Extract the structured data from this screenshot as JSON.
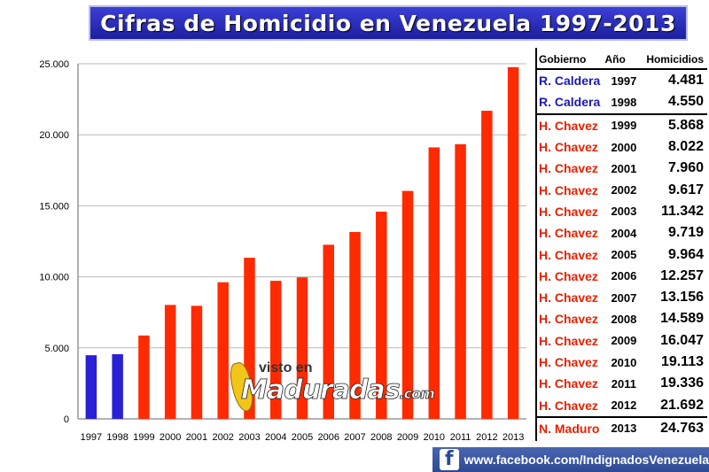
{
  "title": "Cifras de Homicidio en Venezuela 1997-2013",
  "chart_data": {
    "type": "bar",
    "categories": [
      "1997",
      "1998",
      "1999",
      "2000",
      "2001",
      "2002",
      "2003",
      "2004",
      "2005",
      "2006",
      "2007",
      "2008",
      "2009",
      "2010",
      "2011",
      "2012",
      "2013"
    ],
    "values": [
      4481,
      4550,
      5868,
      8022,
      7960,
      9617,
      11342,
      9719,
      9964,
      12257,
      13156,
      14589,
      16047,
      19113,
      19336,
      21692,
      24763
    ],
    "bar_colors": [
      "#2a21d6",
      "#2a21d6",
      "#ff2a00",
      "#ff2a00",
      "#ff2a00",
      "#ff2a00",
      "#ff2a00",
      "#ff2a00",
      "#ff2a00",
      "#ff2a00",
      "#ff2a00",
      "#ff2a00",
      "#ff2a00",
      "#ff2a00",
      "#ff2a00",
      "#ff2a00",
      "#ff2a00"
    ],
    "ylim": [
      0,
      25000
    ],
    "yticks": [
      0,
      5000,
      10000,
      15000,
      20000,
      25000
    ],
    "ytick_labels": [
      "0",
      "5.000",
      "10.000",
      "15.000",
      "20.000",
      "25.000"
    ],
    "grid": true
  },
  "table": {
    "headers": [
      "Gobierno",
      "Año",
      "Homicidios"
    ],
    "rows": [
      {
        "gov": "R. Caldera",
        "year": "1997",
        "value": "4.481",
        "color": "#1a1ab4"
      },
      {
        "gov": "R. Caldera",
        "year": "1998",
        "value": "4.550",
        "color": "#1a1ab4"
      },
      {
        "gov": "H. Chavez",
        "year": "1999",
        "value": "5.868",
        "color": "#e82000"
      },
      {
        "gov": "H. Chavez",
        "year": "2000",
        "value": "8.022",
        "color": "#e82000"
      },
      {
        "gov": "H. Chavez",
        "year": "2001",
        "value": "7.960",
        "color": "#e82000"
      },
      {
        "gov": "H. Chavez",
        "year": "2002",
        "value": "9.617",
        "color": "#e82000"
      },
      {
        "gov": "H. Chavez",
        "year": "2003",
        "value": "11.342",
        "color": "#e82000"
      },
      {
        "gov": "H. Chavez",
        "year": "2004",
        "value": "9.719",
        "color": "#e82000"
      },
      {
        "gov": "H. Chavez",
        "year": "2005",
        "value": "9.964",
        "color": "#e82000"
      },
      {
        "gov": "H. Chavez",
        "year": "2006",
        "value": "12.257",
        "color": "#e82000"
      },
      {
        "gov": "H. Chavez",
        "year": "2007",
        "value": "13.156",
        "color": "#e82000"
      },
      {
        "gov": "H. Chavez",
        "year": "2008",
        "value": "14.589",
        "color": "#e82000"
      },
      {
        "gov": "H. Chavez",
        "year": "2009",
        "value": "16.047",
        "color": "#e82000"
      },
      {
        "gov": "H. Chavez",
        "year": "2010",
        "value": "19.113",
        "color": "#e82000"
      },
      {
        "gov": "H. Chavez",
        "year": "2011",
        "value": "19.336",
        "color": "#e82000"
      },
      {
        "gov": "H. Chavez",
        "year": "2012",
        "value": "21.692",
        "color": "#e82000"
      },
      {
        "gov": "N. Maduro",
        "year": "2013",
        "value": "24.763",
        "color": "#e82000"
      }
    ]
  },
  "watermark": {
    "small": "visto en",
    "big": "Maduradas",
    "suffix": ".com"
  },
  "footer": {
    "icon": "facebook-icon",
    "text": "www.facebook.com/IndignadosVenezuela"
  }
}
